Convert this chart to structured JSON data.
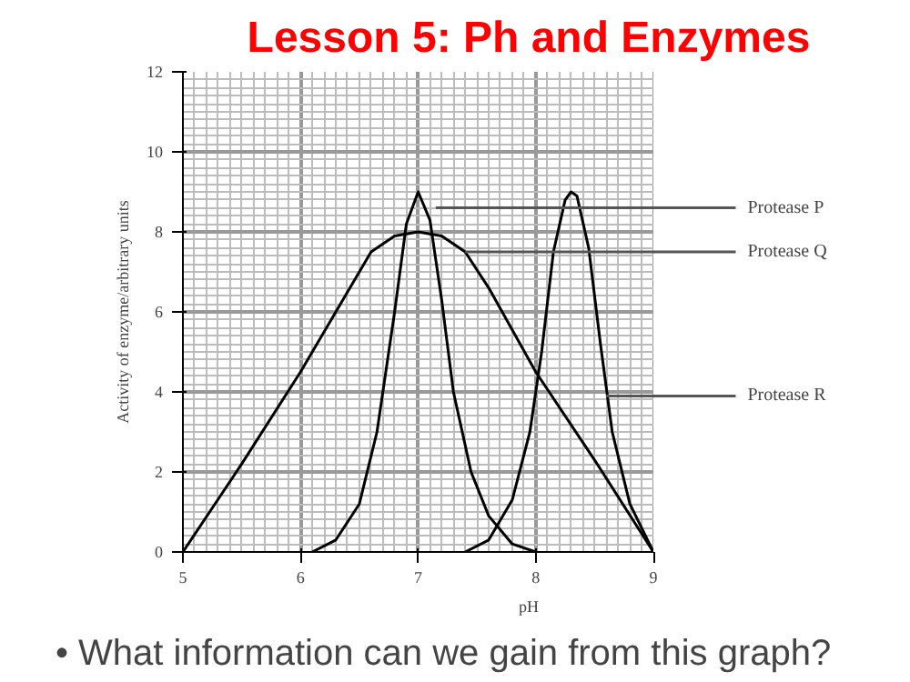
{
  "chart_data": {
    "type": "line",
    "title": "Lesson 5: Ph and Enzymes",
    "xlabel": "pH",
    "ylabel": "Activity of enzyme/arbitrary units",
    "xlim": [
      5,
      9
    ],
    "xticks": [
      5,
      6,
      7,
      8,
      9
    ],
    "ylim": [
      0,
      12
    ],
    "yticks": [
      0,
      2,
      4,
      6,
      8,
      10,
      12
    ],
    "grid": true,
    "marker": "none",
    "line_style": "solid",
    "series": [
      {
        "color": "#000000",
        "x": [
          6.1,
          6.3,
          6.5,
          6.65,
          6.8,
          6.9,
          7.0,
          7.1,
          7.2,
          7.3,
          7.45,
          7.6,
          7.8,
          8.0
        ],
        "values": [
          0,
          0.3,
          1.2,
          3,
          6,
          8.2,
          9,
          8.3,
          6.3,
          4,
          2,
          0.9,
          0.2,
          0
        ]
      },
      {
        "color": "#000000",
        "x": [
          5,
          5.5,
          6,
          6.3,
          6.6,
          6.8,
          7.0,
          7.2,
          7.4,
          7.6,
          8.0,
          8.5,
          9
        ],
        "values": [
          0,
          2.2,
          4.5,
          6,
          7.5,
          7.9,
          8,
          7.9,
          7.5,
          6.6,
          4.5,
          2.3,
          0
        ]
      },
      {
        "color": "#000000",
        "x": [
          7.4,
          7.6,
          7.8,
          7.95,
          8.05,
          8.15,
          8.25,
          8.3,
          8.35,
          8.45,
          8.55,
          8.65,
          8.8,
          9
        ],
        "values": [
          0,
          0.3,
          1.3,
          3,
          5,
          7.5,
          8.8,
          9,
          8.9,
          7.6,
          5.2,
          3,
          1.2,
          0
        ]
      }
    ],
    "annotations": [
      {
        "text": "Protease P",
        "x": 7.15,
        "y": 8.6
      },
      {
        "text": "Protease Q",
        "x": 7.4,
        "y": 7.5
      },
      {
        "text": "Protease R",
        "x": 8.6,
        "y": 3.9
      },
      "• What information can we gain from this graph?"
    ]
  }
}
